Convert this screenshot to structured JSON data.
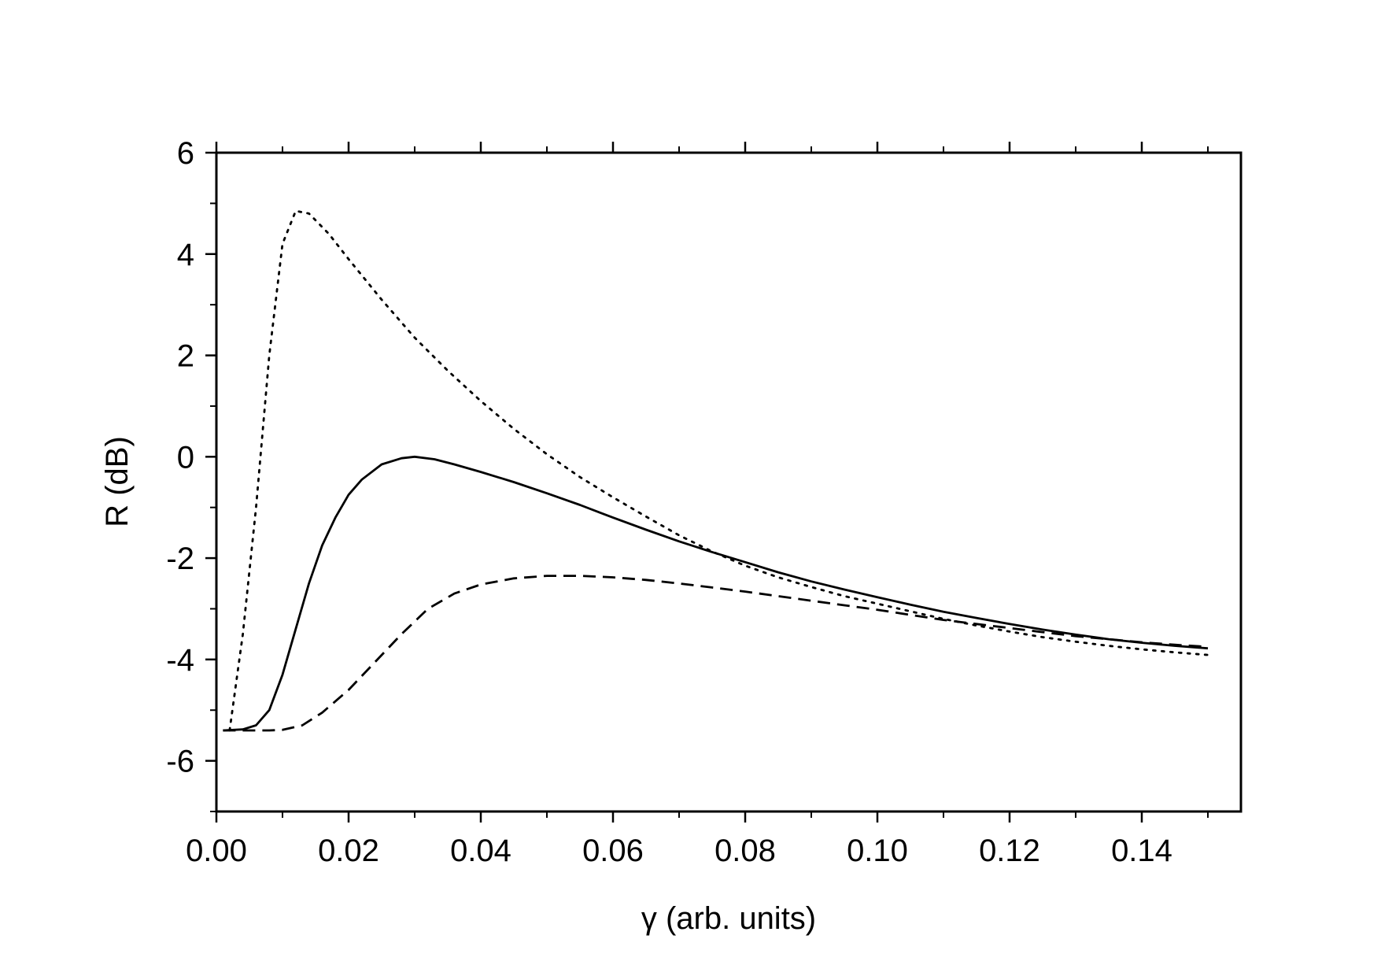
{
  "chart_data": {
    "type": "line",
    "title": "",
    "xlabel": "γ (arb. units)",
    "ylabel": "R (dB)",
    "xlim": [
      0.0,
      0.155
    ],
    "ylim": [
      -7,
      6
    ],
    "x_ticks": [
      0.0,
      0.02,
      0.04,
      0.06,
      0.08,
      0.1,
      0.12,
      0.14
    ],
    "x_tick_labels": [
      "0.00",
      "0.02",
      "0.04",
      "0.06",
      "0.08",
      "0.10",
      "0.12",
      "0.14"
    ],
    "y_ticks": [
      -6,
      -4,
      -2,
      0,
      2,
      4,
      6
    ],
    "y_tick_labels": [
      "-6",
      "-4",
      "-2",
      "0",
      "2",
      "4",
      "6"
    ],
    "x_minor_ticks": [
      0.01,
      0.03,
      0.05,
      0.07,
      0.09,
      0.11,
      0.13,
      0.15
    ],
    "y_minor_ticks": [
      -7,
      -5,
      -3,
      -1,
      1,
      3,
      5
    ],
    "grid": false,
    "legend": "none",
    "line_color": "#000000",
    "series": [
      {
        "style": "solid",
        "points": [
          [
            0.001,
            -5.4
          ],
          [
            0.004,
            -5.38
          ],
          [
            0.006,
            -5.3
          ],
          [
            0.008,
            -5.0
          ],
          [
            0.01,
            -4.3
          ],
          [
            0.012,
            -3.4
          ],
          [
            0.014,
            -2.5
          ],
          [
            0.016,
            -1.75
          ],
          [
            0.018,
            -1.2
          ],
          [
            0.02,
            -0.75
          ],
          [
            0.022,
            -0.45
          ],
          [
            0.025,
            -0.15
          ],
          [
            0.028,
            -0.03
          ],
          [
            0.03,
            0.0
          ],
          [
            0.033,
            -0.05
          ],
          [
            0.036,
            -0.15
          ],
          [
            0.04,
            -0.3
          ],
          [
            0.045,
            -0.5
          ],
          [
            0.05,
            -0.72
          ],
          [
            0.055,
            -0.95
          ],
          [
            0.06,
            -1.2
          ],
          [
            0.065,
            -1.44
          ],
          [
            0.07,
            -1.67
          ],
          [
            0.075,
            -1.88
          ],
          [
            0.08,
            -2.08
          ],
          [
            0.085,
            -2.28
          ],
          [
            0.09,
            -2.46
          ],
          [
            0.095,
            -2.62
          ],
          [
            0.1,
            -2.77
          ],
          [
            0.105,
            -2.92
          ],
          [
            0.11,
            -3.06
          ],
          [
            0.115,
            -3.18
          ],
          [
            0.12,
            -3.3
          ],
          [
            0.125,
            -3.41
          ],
          [
            0.13,
            -3.51
          ],
          [
            0.135,
            -3.6
          ],
          [
            0.14,
            -3.67
          ],
          [
            0.145,
            -3.73
          ],
          [
            0.15,
            -3.78
          ]
        ]
      },
      {
        "style": "dashed",
        "points": [
          [
            0.001,
            -5.4
          ],
          [
            0.005,
            -5.4
          ],
          [
            0.008,
            -5.4
          ],
          [
            0.01,
            -5.39
          ],
          [
            0.013,
            -5.3
          ],
          [
            0.016,
            -5.05
          ],
          [
            0.02,
            -4.6
          ],
          [
            0.024,
            -4.05
          ],
          [
            0.028,
            -3.5
          ],
          [
            0.032,
            -3.0
          ],
          [
            0.036,
            -2.7
          ],
          [
            0.04,
            -2.52
          ],
          [
            0.045,
            -2.4
          ],
          [
            0.05,
            -2.35
          ],
          [
            0.055,
            -2.35
          ],
          [
            0.06,
            -2.38
          ],
          [
            0.065,
            -2.43
          ],
          [
            0.07,
            -2.5
          ],
          [
            0.075,
            -2.58
          ],
          [
            0.08,
            -2.66
          ],
          [
            0.085,
            -2.75
          ],
          [
            0.09,
            -2.84
          ],
          [
            0.095,
            -2.93
          ],
          [
            0.1,
            -3.02
          ],
          [
            0.105,
            -3.12
          ],
          [
            0.11,
            -3.22
          ],
          [
            0.115,
            -3.3
          ],
          [
            0.12,
            -3.38
          ],
          [
            0.125,
            -3.46
          ],
          [
            0.13,
            -3.54
          ],
          [
            0.135,
            -3.6
          ],
          [
            0.14,
            -3.66
          ],
          [
            0.145,
            -3.71
          ],
          [
            0.15,
            -3.75
          ]
        ]
      },
      {
        "style": "dotted",
        "points": [
          [
            0.002,
            -5.4
          ],
          [
            0.004,
            -3.5
          ],
          [
            0.006,
            -1.0
          ],
          [
            0.008,
            2.0
          ],
          [
            0.01,
            4.2
          ],
          [
            0.012,
            4.85
          ],
          [
            0.014,
            4.8
          ],
          [
            0.017,
            4.4
          ],
          [
            0.02,
            3.9
          ],
          [
            0.025,
            3.1
          ],
          [
            0.03,
            2.35
          ],
          [
            0.035,
            1.7
          ],
          [
            0.04,
            1.1
          ],
          [
            0.045,
            0.55
          ],
          [
            0.05,
            0.05
          ],
          [
            0.055,
            -0.4
          ],
          [
            0.06,
            -0.8
          ],
          [
            0.065,
            -1.18
          ],
          [
            0.07,
            -1.55
          ],
          [
            0.075,
            -1.87
          ],
          [
            0.08,
            -2.15
          ],
          [
            0.085,
            -2.38
          ],
          [
            0.09,
            -2.57
          ],
          [
            0.095,
            -2.75
          ],
          [
            0.1,
            -2.9
          ],
          [
            0.105,
            -3.05
          ],
          [
            0.11,
            -3.2
          ],
          [
            0.115,
            -3.33
          ],
          [
            0.12,
            -3.45
          ],
          [
            0.125,
            -3.56
          ],
          [
            0.13,
            -3.65
          ],
          [
            0.135,
            -3.73
          ],
          [
            0.14,
            -3.8
          ],
          [
            0.145,
            -3.86
          ],
          [
            0.15,
            -3.91
          ]
        ]
      }
    ]
  }
}
